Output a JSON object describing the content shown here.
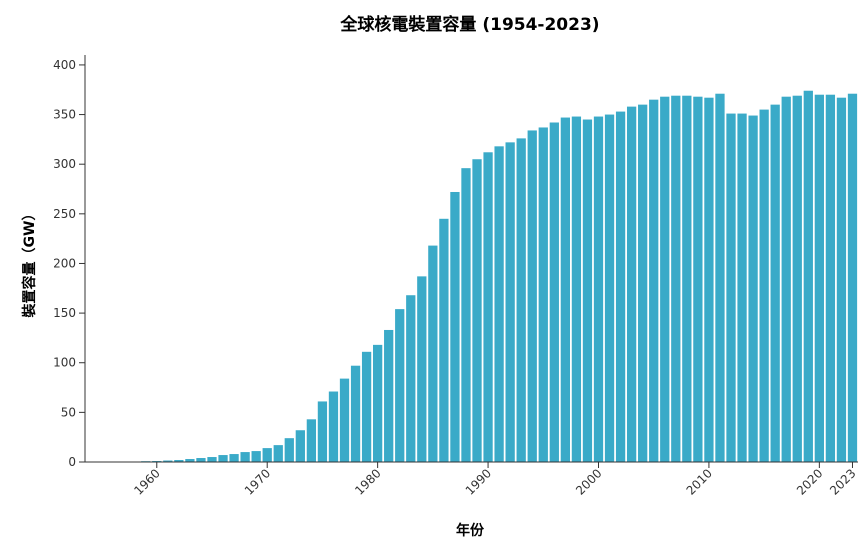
{
  "chart_data": {
    "type": "bar",
    "title": "全球核電裝置容量 (1954-2023)",
    "x_label": "年份",
    "y_label": "裝置容量（GW）",
    "x": [
      1954,
      1955,
      1956,
      1957,
      1958,
      1959,
      1960,
      1961,
      1962,
      1963,
      1964,
      1965,
      1966,
      1967,
      1968,
      1969,
      1970,
      1971,
      1972,
      1973,
      1974,
      1975,
      1976,
      1977,
      1978,
      1979,
      1980,
      1981,
      1982,
      1983,
      1984,
      1985,
      1986,
      1987,
      1988,
      1989,
      1990,
      1991,
      1992,
      1993,
      1994,
      1995,
      1996,
      1997,
      1998,
      1999,
      2000,
      2001,
      2002,
      2003,
      2004,
      2005,
      2006,
      2007,
      2008,
      2009,
      2010,
      2011,
      2012,
      2013,
      2014,
      2015,
      2016,
      2017,
      2018,
      2019,
      2020,
      2021,
      2022,
      2023
    ],
    "values": [
      0,
      0,
      0.05,
      0.3,
      0.5,
      0.8,
      1,
      1.5,
      2,
      3,
      4,
      5,
      7,
      8,
      10,
      11,
      14,
      17,
      24,
      32,
      43,
      61,
      71,
      84,
      97,
      111,
      118,
      133,
      154,
      168,
      187,
      218,
      245,
      272,
      296,
      305,
      312,
      318,
      322,
      326,
      334,
      337,
      342,
      347,
      348,
      345,
      348,
      350,
      353,
      358,
      360,
      365,
      368,
      369,
      369,
      368,
      367,
      371,
      351,
      351,
      349,
      355,
      360,
      368,
      369,
      374,
      370,
      370,
      367,
      371
    ],
    "color": "#3aaac8",
    "xlim": [
      1953.5,
      2023.5
    ],
    "xticks": [
      1960,
      1970,
      1980,
      1990,
      2000,
      2010,
      2020,
      2023
    ],
    "ylim": [
      0,
      410
    ],
    "yticks": [
      0,
      50,
      100,
      150,
      200,
      250,
      300,
      350,
      400
    ]
  }
}
